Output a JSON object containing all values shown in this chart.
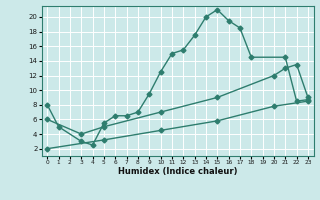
{
  "bg_color": "#cce9e9",
  "grid_color": "#ffffff",
  "line_color": "#2e7d6e",
  "xlabel": "Humidex (Indice chaleur)",
  "xlim": [
    -0.5,
    23.5
  ],
  "ylim": [
    1.0,
    21.5
  ],
  "yticks": [
    2,
    4,
    6,
    8,
    10,
    12,
    14,
    16,
    18,
    20
  ],
  "xticks": [
    0,
    1,
    2,
    3,
    4,
    5,
    6,
    7,
    8,
    9,
    10,
    11,
    12,
    13,
    14,
    15,
    16,
    17,
    18,
    19,
    20,
    21,
    22,
    23
  ],
  "line1_x": [
    0,
    1,
    3,
    4,
    5,
    6,
    7,
    8,
    9,
    10,
    11,
    12,
    13,
    14,
    15,
    16,
    17,
    18,
    21,
    22,
    23
  ],
  "line1_y": [
    8,
    5,
    3,
    2.5,
    5.5,
    6.5,
    6.5,
    7,
    9.5,
    12.5,
    15,
    15.5,
    17.5,
    20,
    21,
    19.5,
    18.5,
    14.5,
    14.5,
    8.5,
    8.7
  ],
  "line2_x": [
    0,
    3,
    5,
    10,
    15,
    20,
    21,
    22,
    23
  ],
  "line2_y": [
    6,
    4,
    5,
    7,
    9,
    12,
    13,
    13.5,
    9
  ],
  "line3_x": [
    0,
    5,
    10,
    15,
    20,
    23
  ],
  "line3_y": [
    2,
    3.2,
    4.5,
    5.8,
    7.8,
    8.5
  ],
  "marker": "D",
  "markersize": 2.5,
  "linewidth": 1.0
}
